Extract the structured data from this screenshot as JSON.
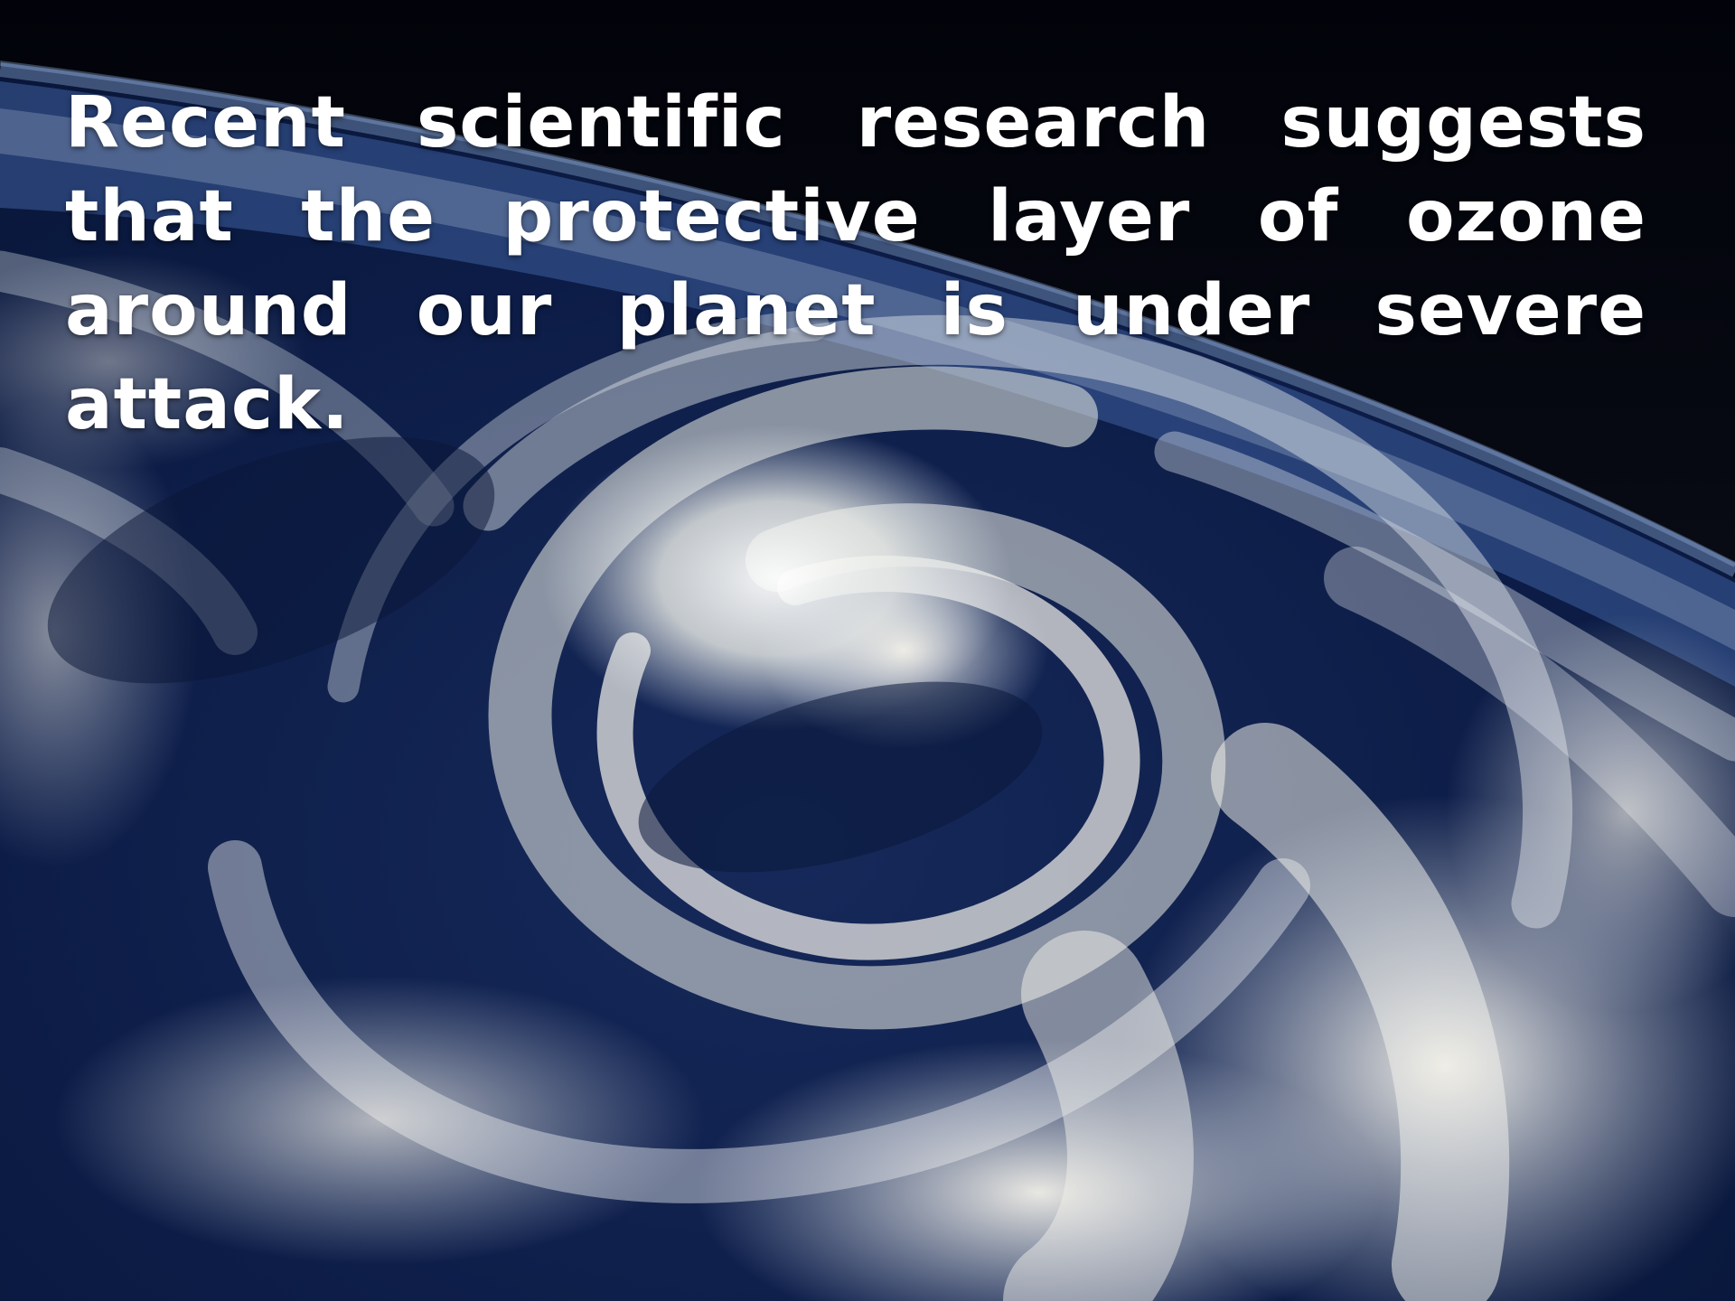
{
  "slide": {
    "caption": "Recent scientific research suggests that the protective layer of ozone around our planet is under severe attack."
  },
  "image": {
    "subject": "earth-cyclone-from-orbit",
    "colors": {
      "space": "#05070d",
      "ocean": "#0b1a3f",
      "cloud": "#f2f0e6",
      "atmosphere_glow": "#5f86c8"
    }
  }
}
